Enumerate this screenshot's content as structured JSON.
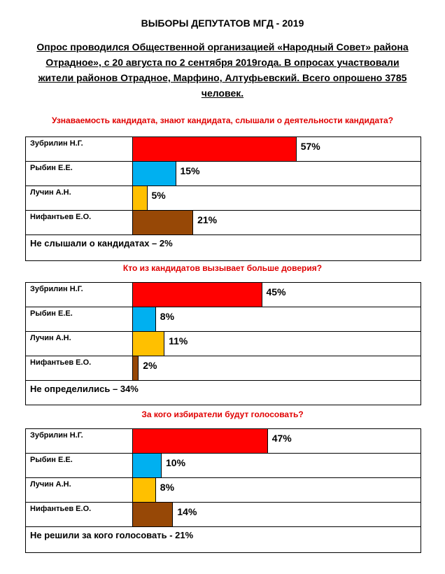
{
  "title": "ВЫБОРЫ ДЕПУТАТОВ МГД - 2019",
  "intro": "Опрос проводился Общественной организацией «Народный Совет» района Отрадное», с 20 августа по 2 сентября 2019года. В опросах участвовали жители районов Отрадное, Марфино, Алтуфьевский. Всего опрошено 3785 человек.",
  "colors": {
    "Зубрилин": "#ff0000",
    "Рыбин": "#00b0f0",
    "Лучин": "#ffc000",
    "Нифантьев": "#974806",
    "question_text": "#e00000"
  },
  "chart_data": [
    {
      "type": "bar",
      "title": "Узнаваемость кандидата, знают кандидата, слышали о деятельности кандидата?",
      "categories": [
        "Зубрилин Н.Г.",
        "Рыбин Е.Е.",
        "Лучин А.Н.",
        "Нифантьев Е.О."
      ],
      "values": [
        57,
        15,
        5,
        21
      ],
      "labels": [
        "57%",
        "15%",
        "5%",
        "21%"
      ],
      "footer": "Не слышали о кандидатах – 2%"
    },
    {
      "type": "bar",
      "title": "Кто из кандидатов вызывает больше доверия?",
      "categories": [
        "Зубрилин Н.Г.",
        "Рыбин Е.Е.",
        "Лучин А.Н.",
        "Нифантьев Е.О."
      ],
      "values": [
        45,
        8,
        11,
        2
      ],
      "labels": [
        "45%",
        "8%",
        "11%",
        "2%"
      ],
      "footer": "Не определились – 34%"
    },
    {
      "type": "bar",
      "title": "За кого избиратели будут голосовать?",
      "categories": [
        "Зубрилин Н.Г.",
        "Рыбин Е.Е.",
        "Лучин А.Н.",
        "Нифантьев Е.О."
      ],
      "values": [
        47,
        10,
        8,
        14
      ],
      "labels": [
        "47%",
        "10%",
        "8%",
        "14%"
      ],
      "footer": "Не решили за кого голосовать - 21%"
    }
  ]
}
